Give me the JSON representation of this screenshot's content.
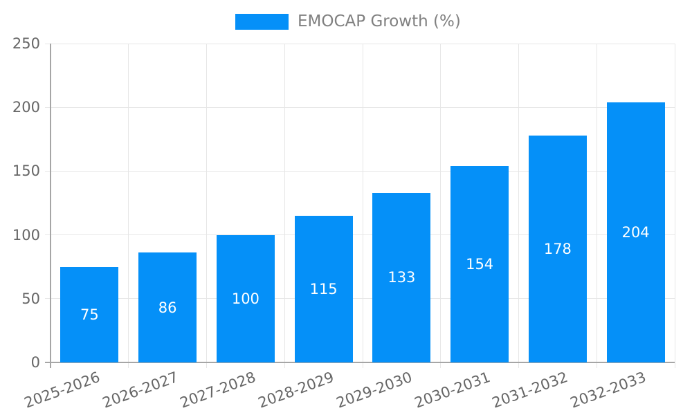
{
  "chart_data": {
    "type": "bar",
    "title": "EMOCAP Growth (%)",
    "categories": [
      "2025-2026",
      "2026-2027",
      "2027-2028",
      "2028-2029",
      "2029-2030",
      "2030-2031",
      "2031-2032",
      "2032-2033"
    ],
    "values": [
      75,
      86,
      100,
      115,
      133,
      154,
      178,
      204
    ],
    "xlabel": "",
    "ylabel": "",
    "ylim": [
      0,
      250
    ],
    "yticks": [
      0,
      50,
      100,
      150,
      200,
      250
    ],
    "grid": true,
    "legend_position": "top-center",
    "x_tick_rotation_deg": -20,
    "bar_color": "#0590f8",
    "value_label_color": "#ffffff",
    "grid_color": "#e6e6e6",
    "axis_color": "#a6a6a6",
    "tick_label_color": "#666666",
    "legend_text_color": "#808080"
  }
}
